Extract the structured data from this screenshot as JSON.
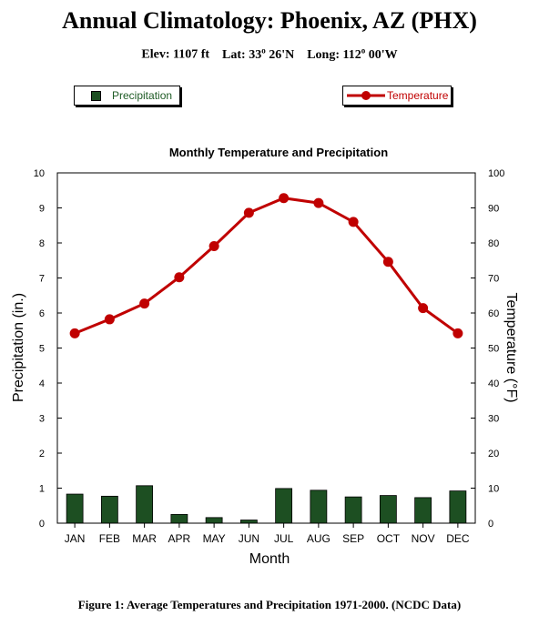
{
  "header": {
    "title": "Annual Climatology: Phoenix, AZ (PHX)",
    "elev": "Elev: 1107 ft",
    "lat_pre": "Lat: 33",
    "lat_sup": "o",
    "lat_post": " 26'N",
    "long_pre": "Long: 112",
    "long_sup": "o",
    "long_post": " 00'W"
  },
  "legend": {
    "precip_label": "Precipitation",
    "temp_label": "Temperature"
  },
  "caption": "Figure 1: Average Temperatures and Precipitation 1971-2000. (NCDC Data)",
  "colors": {
    "precip_bar": "#1d4f22",
    "temperature_line": "#c00000"
  },
  "chart_data": {
    "type": "bar",
    "title": "Monthly Temperature and Precipitation",
    "xlabel": "Month",
    "ylabel": "Precipitation (in.)",
    "y2label": "Temperature (°F)",
    "categories": [
      "JAN",
      "FEB",
      "MAR",
      "APR",
      "MAY",
      "JUN",
      "JUL",
      "AUG",
      "SEP",
      "OCT",
      "NOV",
      "DEC"
    ],
    "ylim": [
      0,
      10
    ],
    "y2lim": [
      0,
      100
    ],
    "yticks": [
      0,
      1,
      2,
      3,
      4,
      5,
      6,
      7,
      8,
      9,
      10
    ],
    "y2ticks": [
      0,
      10,
      20,
      30,
      40,
      50,
      60,
      70,
      80,
      90,
      100
    ],
    "legend_placement": "top",
    "grid": false,
    "series": [
      {
        "name": "Precipitation",
        "type": "bar",
        "axis": "left",
        "values": [
          0.83,
          0.77,
          1.07,
          0.25,
          0.16,
          0.09,
          0.99,
          0.94,
          0.75,
          0.79,
          0.73,
          0.92
        ]
      },
      {
        "name": "Temperature",
        "type": "line",
        "axis": "right",
        "values": [
          54.2,
          58.2,
          62.7,
          70.2,
          79.1,
          88.6,
          92.8,
          91.4,
          86.0,
          74.6,
          61.4,
          54.2
        ]
      }
    ]
  }
}
